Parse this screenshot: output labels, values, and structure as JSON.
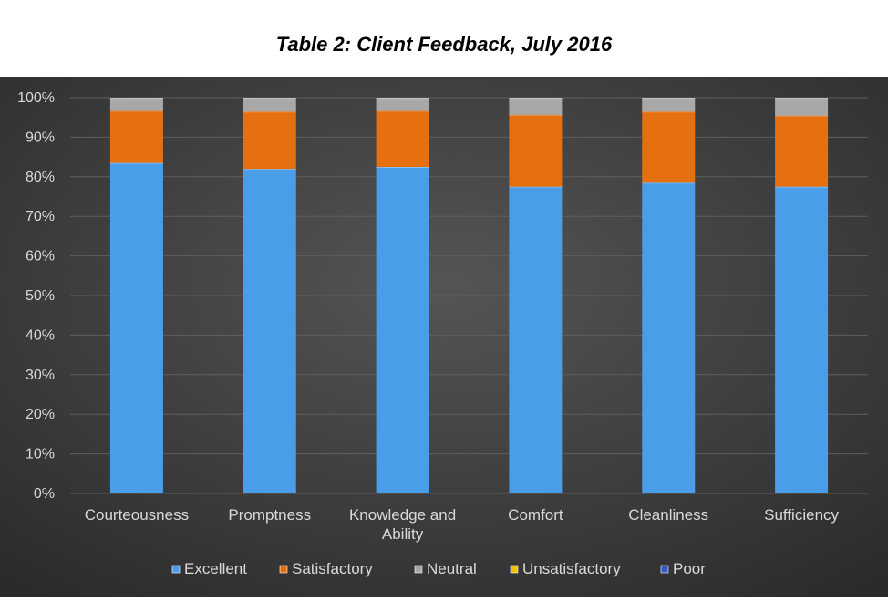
{
  "title": "Table 2: Client Feedback, July 2016",
  "chart_data": {
    "type": "bar",
    "stacked": true,
    "percent": true,
    "categories": [
      "Courteousness",
      "Promptness",
      "Knowledge and Ability",
      "Comfort",
      "Cleanliness",
      "Sufficiency"
    ],
    "category_lines": [
      [
        "Courteousness"
      ],
      [
        "Promptness"
      ],
      [
        "Knowledge and",
        "Ability"
      ],
      [
        "Comfort"
      ],
      [
        "Cleanliness"
      ],
      [
        "Sufficiency"
      ]
    ],
    "series": [
      {
        "name": "Excellent",
        "color": "#4a9de8",
        "values": [
          83.5,
          82,
          82.5,
          77.5,
          78.5,
          77.5
        ]
      },
      {
        "name": "Satisfactory",
        "color": "#e66f10",
        "values": [
          13.2,
          14.5,
          14.2,
          18.2,
          18,
          18
        ]
      },
      {
        "name": "Neutral",
        "color": "#a8a8a8",
        "values": [
          3.0,
          3.2,
          3.0,
          4.0,
          3.2,
          4.2
        ]
      },
      {
        "name": "Unsatisfactory",
        "color": "#f2c200",
        "values": [
          0.2,
          0.2,
          0.2,
          0.2,
          0.2,
          0.2
        ]
      },
      {
        "name": "Poor",
        "color": "#2f5dc6",
        "values": [
          0.1,
          0.1,
          0.1,
          0.1,
          0.1,
          0.1
        ]
      }
    ],
    "ylim": [
      0,
      100
    ],
    "yticks": [
      "0%",
      "10%",
      "20%",
      "30%",
      "40%",
      "50%",
      "60%",
      "70%",
      "80%",
      "90%",
      "100%"
    ],
    "grid": true,
    "legend_position": "bottom",
    "background": "#3a3a3a"
  }
}
